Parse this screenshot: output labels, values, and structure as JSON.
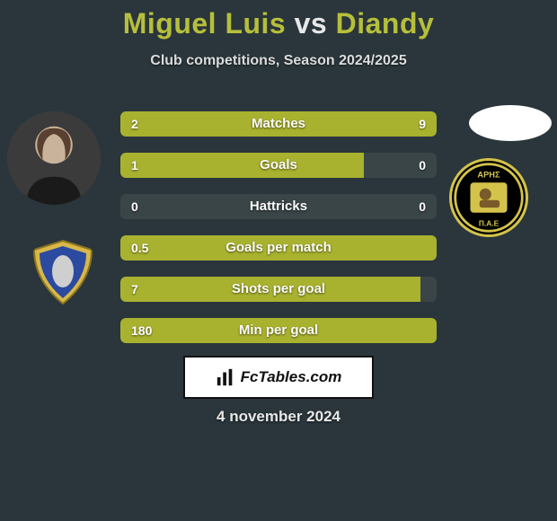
{
  "background_color": "#2a363b",
  "title": {
    "player1": "Miguel Luis",
    "vs": "vs",
    "player2": "Diandy",
    "p1_color": "#b7bf3a",
    "vs_color": "#e8e8e8",
    "p2_color": "#b7bf3a",
    "fontsize": 32
  },
  "subtitle": "Club competitions, Season 2024/2025",
  "bars": {
    "track_width": 352,
    "track_color": "#3a4548",
    "height": 28,
    "gap": 18,
    "label_color": "#fcfcfa",
    "value_color": "#ffffff",
    "fontsize": 15,
    "rows": [
      {
        "label": "Matches",
        "left_value": "2",
        "right_value": "9",
        "left_fill_pct": 18,
        "right_fill_pct": 82,
        "left_color": "#a9b22f",
        "right_color": "#a9b22f"
      },
      {
        "label": "Goals",
        "left_value": "1",
        "right_value": "0",
        "left_fill_pct": 77,
        "right_fill_pct": 0,
        "left_color": "#a9b22f",
        "right_color": "#a9b22f"
      },
      {
        "label": "Hattricks",
        "left_value": "0",
        "right_value": "0",
        "left_fill_pct": 0,
        "right_fill_pct": 0,
        "left_color": "#a9b22f",
        "right_color": "#a9b22f"
      },
      {
        "label": "Goals per match",
        "left_value": "0.5",
        "right_value": "",
        "left_fill_pct": 100,
        "right_fill_pct": 0,
        "left_color": "#a9b22f",
        "right_color": "#a9b22f"
      },
      {
        "label": "Shots per goal",
        "left_value": "7",
        "right_value": "",
        "left_fill_pct": 95,
        "right_fill_pct": 0,
        "left_color": "#a9b22f",
        "right_color": "#a9b22f"
      },
      {
        "label": "Min per goal",
        "left_value": "180",
        "right_value": "",
        "left_fill_pct": 100,
        "right_fill_pct": 0,
        "left_color": "#a9b22f",
        "right_color": "#a9b22f"
      }
    ]
  },
  "footer": {
    "brand": "FcTables.com",
    "date": "4 november 2024",
    "badge_bg": "#ffffff",
    "badge_border": "#111111",
    "brand_color": "#111111"
  },
  "avatars": {
    "left_player_bg": "#444444",
    "right_player_bg": "#ffffff",
    "right_club_bg": "#000000",
    "right_club_border": "#d4c34a",
    "left_club_shield_outer": "#d9b84a",
    "left_club_shield_inner": "#2b4aa0"
  }
}
